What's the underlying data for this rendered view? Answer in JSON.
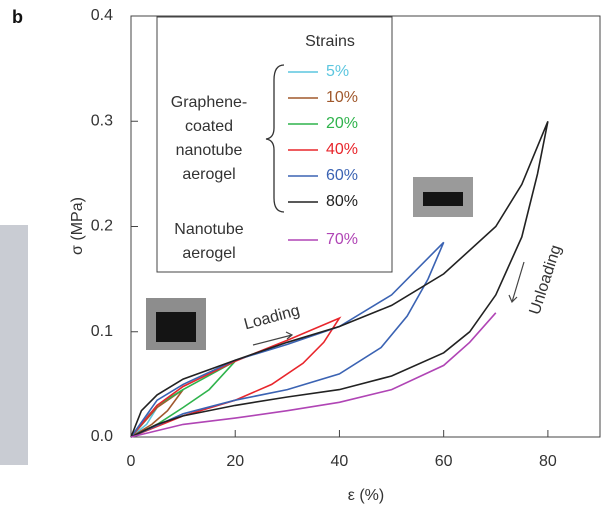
{
  "chart_data": {
    "type": "line",
    "panel_label": "b",
    "x_label": "ε (%)",
    "y_label": "σ (MPa)",
    "xlim": [
      0,
      90
    ],
    "ylim": [
      0,
      0.4
    ],
    "xticks": [
      0,
      20,
      40,
      60,
      80
    ],
    "yticks": [
      {
        "value": 0,
        "label": "0.0"
      },
      {
        "value": 0.1,
        "label": "0.1"
      },
      {
        "value": 0.2,
        "label": "0.2"
      },
      {
        "value": 0.3,
        "label": "0.3"
      },
      {
        "value": 0.4,
        "label": "0.4"
      }
    ],
    "legend_title": "Strains",
    "legend_groups": [
      [
        "Graphene-",
        "coated",
        "nanotube",
        "aerogel"
      ],
      [
        "Nanotube",
        "aerogel"
      ]
    ],
    "annotations": [
      "Loading",
      "Unloading"
    ],
    "series": [
      {
        "name": "5%",
        "color": "#5cc6df",
        "x": [
          0,
          3,
          5,
          3,
          0
        ],
        "values": [
          0,
          0.02,
          0.028,
          0.012,
          0
        ]
      },
      {
        "name": "10%",
        "color": "#a0582c",
        "x": [
          0,
          5,
          10,
          7,
          4,
          0
        ],
        "values": [
          0,
          0.028,
          0.045,
          0.025,
          0.012,
          0
        ]
      },
      {
        "name": "20%",
        "color": "#2fb34c",
        "x": [
          0,
          5,
          10,
          20,
          15,
          10,
          5,
          0
        ],
        "values": [
          0,
          0.03,
          0.045,
          0.072,
          0.045,
          0.028,
          0.012,
          0
        ]
      },
      {
        "name": "40%",
        "color": "#e8262c",
        "x": [
          0,
          5,
          10,
          20,
          30,
          40,
          37,
          33,
          27,
          20,
          10,
          0
        ],
        "values": [
          0,
          0.03,
          0.048,
          0.072,
          0.092,
          0.113,
          0.09,
          0.07,
          0.05,
          0.035,
          0.02,
          0
        ]
      },
      {
        "name": "60%",
        "color": "#3b63b3",
        "x": [
          0,
          5,
          10,
          20,
          30,
          40,
          50,
          60,
          57,
          53,
          48,
          40,
          30,
          20,
          10,
          0
        ],
        "values": [
          0,
          0.035,
          0.05,
          0.073,
          0.088,
          0.105,
          0.135,
          0.185,
          0.15,
          0.115,
          0.085,
          0.06,
          0.045,
          0.035,
          0.022,
          0
        ]
      },
      {
        "name": "80%",
        "color": "#222222",
        "x": [
          0,
          2,
          5,
          10,
          20,
          30,
          40,
          50,
          60,
          70,
          75,
          80,
          78,
          75,
          70,
          65,
          60,
          50,
          40,
          30,
          20,
          10,
          5,
          0
        ],
        "values": [
          0,
          0.025,
          0.04,
          0.055,
          0.073,
          0.09,
          0.105,
          0.125,
          0.155,
          0.2,
          0.24,
          0.3,
          0.25,
          0.19,
          0.135,
          0.1,
          0.08,
          0.058,
          0.045,
          0.038,
          0.03,
          0.02,
          0.012,
          0
        ]
      },
      {
        "name": "70%",
        "color": "#b045b5",
        "x": [
          0,
          10,
          20,
          30,
          40,
          50,
          60,
          65,
          70
        ],
        "values": [
          0,
          0.012,
          0.018,
          0.025,
          0.033,
          0.045,
          0.068,
          0.09,
          0.118
        ]
      }
    ]
  }
}
